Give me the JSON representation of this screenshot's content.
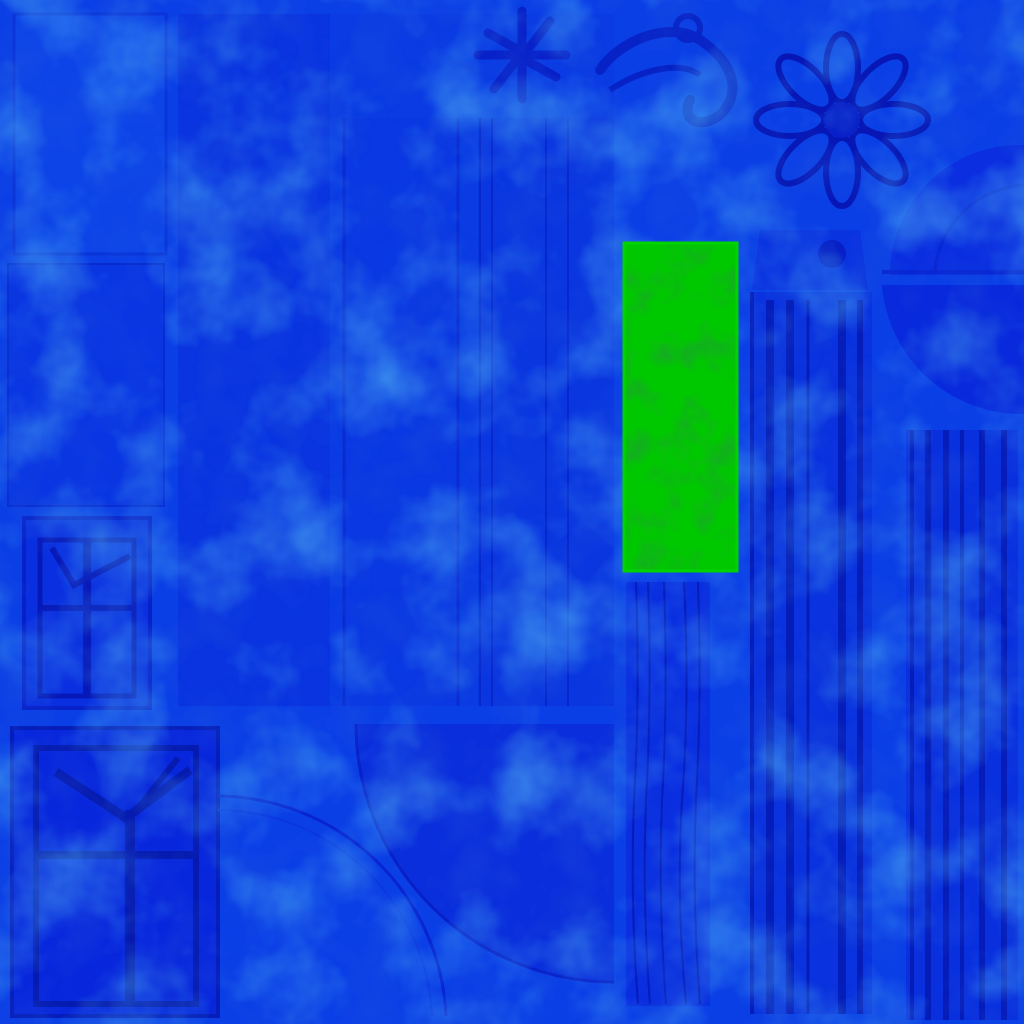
{
  "texture_atlas": {
    "colors": {
      "base_blue": "#0b3fe6",
      "mid_blue": "#0a2fe0",
      "deep_blue": "#0820d8",
      "highlight_cyan": "#1fa0e8",
      "line_blue": "#0516b8",
      "selection_green": "#00c800",
      "selection_green_dark": "#0a6a10"
    },
    "regions": [
      {
        "name": "panel-tall-left-top",
        "kind": "panel"
      },
      {
        "name": "panel-left-middle",
        "kind": "panel"
      },
      {
        "name": "window-frame-small",
        "kind": "window-frame"
      },
      {
        "name": "window-frame-large",
        "kind": "window-frame"
      },
      {
        "name": "panel-wide-center",
        "kind": "panel"
      },
      {
        "name": "fluted-strip-a",
        "kind": "fluted-strip"
      },
      {
        "name": "fluted-strip-b",
        "kind": "fluted-strip"
      },
      {
        "name": "wavy-strip",
        "kind": "wavy-strip"
      },
      {
        "name": "column-fluted",
        "kind": "column"
      },
      {
        "name": "column-fluted-right",
        "kind": "column"
      },
      {
        "name": "arch-quarter-bottom",
        "kind": "arch"
      },
      {
        "name": "arch-ring-bottom-left",
        "kind": "arch"
      },
      {
        "name": "arch-half-right",
        "kind": "arch"
      },
      {
        "name": "rosette-small",
        "kind": "ornament"
      },
      {
        "name": "rosette-large",
        "kind": "ornament"
      },
      {
        "name": "scroll-ornament",
        "kind": "ornament"
      }
    ],
    "selected_region": "selected-uv-island"
  }
}
